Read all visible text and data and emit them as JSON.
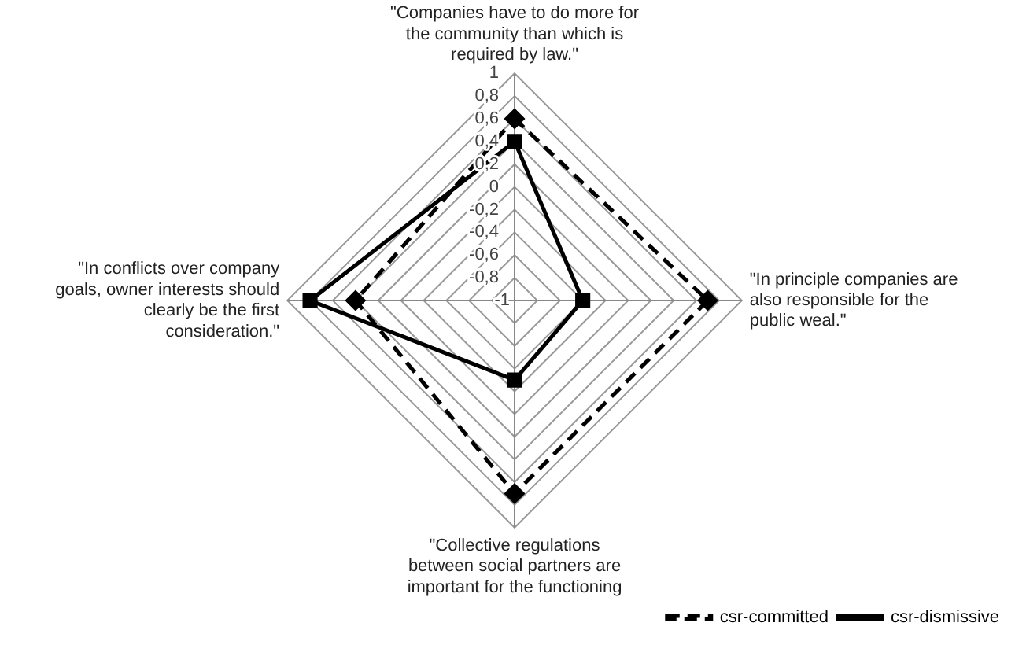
{
  "chart_data": {
    "type": "radar",
    "categories": [
      "\"Companies have to do more for the community than which is required by law.\"",
      "\"In principle companies are also responsible for the public weal.\"",
      "\"Collective regulations between social partners are important for the functioning",
      "\"In conflicts over company goals, owner interests should clearly be the first consideration.\""
    ],
    "series": [
      {
        "name": "csr-committed",
        "color": "#000000",
        "marker": "diamond",
        "line_style": "dashed",
        "values": [
          0.6,
          0.7,
          0.7,
          0.4
        ]
      },
      {
        "name": "csr-dismissive",
        "color": "#000000",
        "marker": "square",
        "line_style": "solid",
        "values": [
          0.4,
          -0.4,
          -0.3,
          0.8
        ]
      }
    ],
    "ylim": [
      -1,
      1
    ],
    "yticks": [
      {
        "value": -1,
        "label": "-1"
      },
      {
        "value": -0.8,
        "label": "-0,8"
      },
      {
        "value": -0.6,
        "label": "-0,6"
      },
      {
        "value": -0.4,
        "label": "-0,4"
      },
      {
        "value": -0.2,
        "label": "-0,2"
      },
      {
        "value": 0,
        "label": "0"
      },
      {
        "value": 0.2,
        "label": "0,2"
      },
      {
        "value": 0.4,
        "label": "0,4"
      },
      {
        "value": 0.6,
        "label": "0,6"
      },
      {
        "value": 0.8,
        "label": "0,8"
      },
      {
        "value": 1,
        "label": "1"
      }
    ],
    "grid": true,
    "legend": "bottom right"
  }
}
